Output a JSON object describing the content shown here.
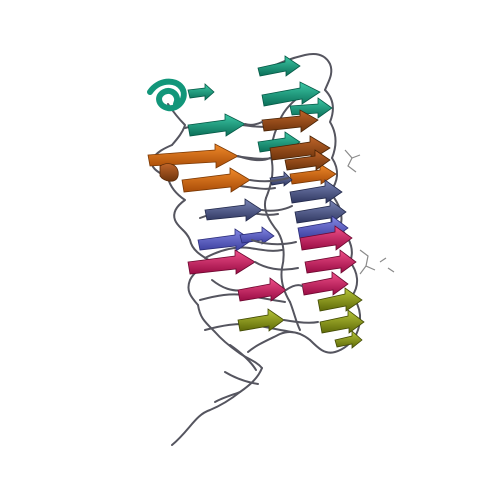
{
  "image": {
    "subject": "protein-structure-ribbon",
    "background": "#ffffff",
    "colors": {
      "coil": "#55555f",
      "sheet_green": "#12967a",
      "sheet_orange": "#d0680f",
      "sheet_brown": "#a24f14",
      "sheet_slate": "#4f5a86",
      "sheet_blue": "#5c5fc2",
      "sheet_pink": "#d21a62",
      "sheet_olive": "#8f9b16",
      "ligand": "#8a8a8a"
    }
  }
}
